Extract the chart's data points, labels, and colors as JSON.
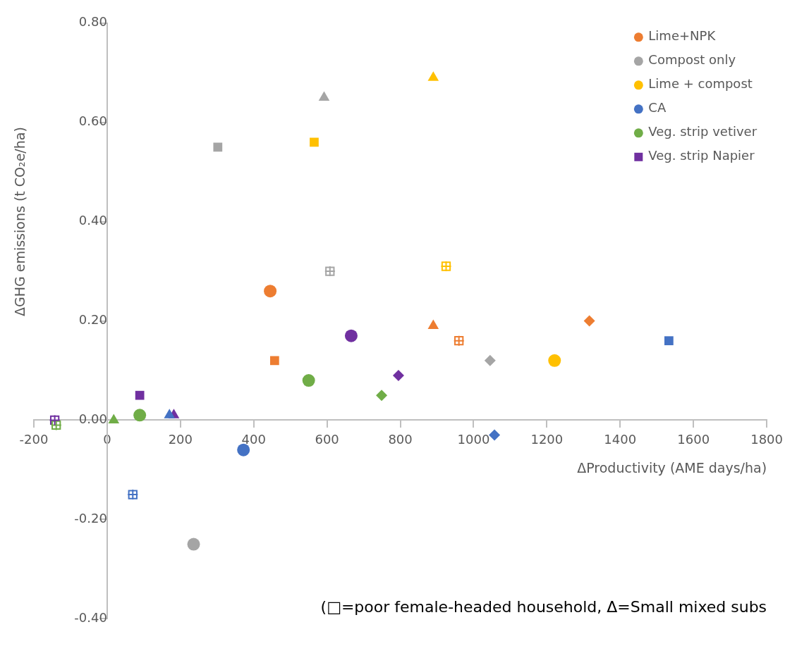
{
  "chart_data": {
    "type": "scatter",
    "xlabel": "ΔProductivity (AME days/ha)",
    "ylabel": "ΔGHG emissions (t CO₂e/ha)",
    "xlim": [
      -200,
      1800
    ],
    "xticks": [
      -200,
      0,
      200,
      400,
      600,
      800,
      1000,
      1200,
      1400,
      1600,
      1800
    ],
    "ylim": [
      -0.4,
      0.8
    ],
    "yticks": [
      {
        "value": -0.4,
        "label": "-0.40"
      },
      {
        "value": -0.2,
        "label": "-0.20"
      },
      {
        "value": 0,
        "label": "0.00"
      },
      {
        "value": 0.2,
        "label": "0.20"
      },
      {
        "value": 0.4,
        "label": "0.40"
      },
      {
        "value": 0.6,
        "label": "0.60"
      },
      {
        "value": 0.8,
        "label": "0.80"
      }
    ],
    "grid": false,
    "legend": "top right",
    "annotations": [
      "(□=poor female-headed household, Δ=Small mixed subs"
    ],
    "series": [
      {
        "name": "Lime+NPK",
        "color": "#ed7d31",
        "x": [
          445,
          457,
          890,
          960,
          1316
        ],
        "values": [
          0.26,
          0.12,
          0.19,
          0.16,
          0.2
        ],
        "marker": [
          "circle",
          "square",
          "triangle",
          "square-open",
          "diamond"
        ]
      },
      {
        "name": "Compost only",
        "color": "#a5a5a5",
        "x": [
          236,
          302,
          592,
          608,
          1045
        ],
        "values": [
          -0.25,
          0.55,
          0.65,
          0.3,
          0.12
        ],
        "marker": [
          "circle",
          "square",
          "triangle",
          "square-open",
          "diamond"
        ]
      },
      {
        "name": "Lime + compost",
        "color": "#ffc000",
        "x": [
          1221,
          565,
          890,
          925
        ],
        "values": [
          0.12,
          0.56,
          0.69,
          0.31
        ],
        "marker": [
          "circle",
          "square",
          "triangle",
          "square-open"
        ]
      },
      {
        "name": "CA",
        "color": "#4472c4",
        "x": [
          372,
          1533,
          170,
          70,
          1057
        ],
        "values": [
          -0.06,
          0.16,
          0.01,
          -0.15,
          -0.03
        ],
        "marker": [
          "circle",
          "square",
          "triangle",
          "square-open",
          "diamond"
        ]
      },
      {
        "name": "Veg. strip vetiver",
        "color": "#70ad47",
        "x": [
          550,
          89,
          18,
          -139,
          749
        ],
        "values": [
          0.08,
          0.01,
          0.0,
          -0.01,
          0.05
        ],
        "marker": [
          "circle",
          "circle",
          "triangle",
          "square-open",
          "diamond"
        ]
      },
      {
        "name": "Veg. strip Napier",
        "color": "#7030a0",
        "x": [
          89,
          666,
          182,
          -143,
          795
        ],
        "values": [
          0.05,
          0.17,
          0.01,
          0.0,
          0.09
        ],
        "marker": [
          "square",
          "circle",
          "triangle",
          "square-open",
          "diamond"
        ]
      }
    ]
  }
}
